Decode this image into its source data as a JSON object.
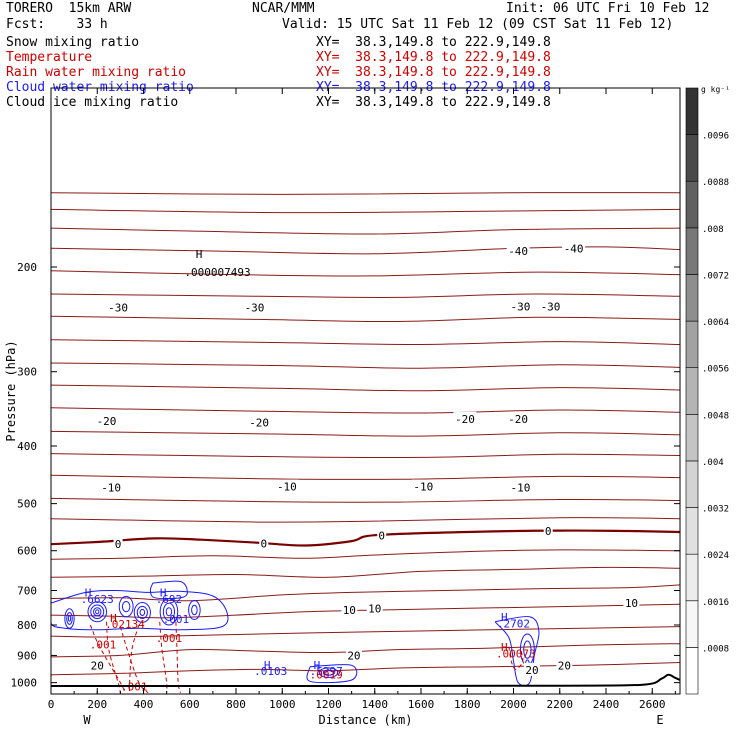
{
  "header": {
    "model": "TORERO  15km ARW",
    "org": "NCAR/MMM",
    "init": "Init: 06 UTC Fri 10 Feb 12",
    "fcst": "Fcst:    33 h",
    "valid": "Valid: 15 UTC Sat 11 Feb 12 (09 CST Sat 11 Feb 12)"
  },
  "fields": [
    {
      "label": "Snow mixing ratio",
      "xy": "XY=  38.3,149.8 to 222.9,149.8",
      "color": "#000000"
    },
    {
      "label": "Temperature",
      "xy": "XY=  38.3,149.8 to 222.9,149.8",
      "color": "#cc0000"
    },
    {
      "label": "Rain water mixing ratio",
      "xy": "XY=  38.3,149.8 to 222.9,149.8",
      "color": "#cc0000"
    },
    {
      "label": "Cloud water mixing ratio",
      "xy": "XY=  38.3,149.8 to 222.9,149.8",
      "color": "#1a1aff"
    },
    {
      "label": "Cloud ice mixing ratio",
      "xy": "XY=  38.3,149.8 to 222.9,149.8",
      "color": "#000000"
    }
  ],
  "chart_data": {
    "type": "cross-section contour",
    "xlabel": "Distance (km)",
    "ylabel": "Pressure (hPa)",
    "x_ticks": [
      0,
      200,
      400,
      600,
      800,
      1000,
      1200,
      1400,
      1600,
      1800,
      2000,
      2200,
      2400,
      2600
    ],
    "x_tick_labels": [
      "0",
      "200",
      "400",
      "600",
      "800",
      "1000",
      "1200",
      "1400",
      "1600",
      "1800",
      "2000",
      "2200",
      "2400",
      "2600"
    ],
    "xlim": [
      0,
      2720
    ],
    "y_ticks": [
      200,
      300,
      400,
      500,
      600,
      700,
      800,
      900,
      1000
    ],
    "y_tick_labels": [
      "200",
      "300",
      "400",
      "500",
      "600",
      "700",
      "800",
      "900",
      "1000"
    ],
    "ylim": [
      100,
      1045
    ],
    "y_scale": "log",
    "left_end_label": "W",
    "right_end_label": "E",
    "colorbar": {
      "unit": "g kg⁻¹",
      "levels": [
        ".0008",
        ".0016",
        ".0024",
        ".0032",
        ".004",
        ".0048",
        ".0056",
        ".0064",
        ".0072",
        ".008",
        ".0088",
        ".0096"
      ],
      "colors": [
        "#ffffff",
        "#f7f7f7",
        "#ececec",
        "#e0e0e0",
        "#d3d3d3",
        "#c4c4c4",
        "#b4b4b4",
        "#a2a2a2",
        "#8e8e8e",
        "#787878",
        "#606060",
        "#4a4a4a",
        "#333333"
      ]
    },
    "temperature_color": "#8b1a1a",
    "zero_isotherm_color": "#7a0000",
    "rain_color": "#d00000",
    "cloud_water_color": "#1a1aff",
    "isotherms": [
      {
        "points": [
          [
            0,
            150
          ],
          [
            1000,
            151
          ],
          [
            2000,
            150
          ],
          [
            2720,
            150
          ]
        ]
      },
      {
        "points": [
          [
            0,
            160
          ],
          [
            1000,
            162
          ],
          [
            2000,
            161
          ],
          [
            2720,
            160
          ]
        ]
      },
      {
        "points": [
          [
            0,
            172
          ],
          [
            600,
            174
          ],
          [
            1400,
            176
          ],
          [
            2000,
            173
          ],
          [
            2720,
            172
          ]
        ]
      },
      {
        "points": [
          [
            0,
            186
          ],
          [
            700,
            188
          ],
          [
            1400,
            190
          ],
          [
            2000,
            186
          ],
          [
            2400,
            185
          ],
          [
            2720,
            187
          ]
        ]
      },
      {
        "points": [
          [
            0,
            203
          ],
          [
            800,
            206
          ],
          [
            1400,
            207
          ],
          [
            2100,
            204
          ],
          [
            2720,
            206
          ]
        ]
      },
      {
        "points": [
          [
            0,
            222
          ],
          [
            900,
            224
          ],
          [
            1500,
            225
          ],
          [
            2100,
            222
          ],
          [
            2720,
            224
          ]
        ]
      },
      {
        "points": [
          [
            0,
            242
          ],
          [
            900,
            245
          ],
          [
            1500,
            247
          ],
          [
            2100,
            243
          ],
          [
            2720,
            245
          ]
        ]
      },
      {
        "points": [
          [
            0,
            265
          ],
          [
            1000,
            268
          ],
          [
            1600,
            270
          ],
          [
            2200,
            267
          ],
          [
            2720,
            270
          ]
        ]
      },
      {
        "points": [
          [
            0,
            290
          ],
          [
            1000,
            293
          ],
          [
            1600,
            296
          ],
          [
            2200,
            292
          ],
          [
            2720,
            295
          ]
        ]
      },
      {
        "points": [
          [
            0,
            316
          ],
          [
            1000,
            320
          ],
          [
            1600,
            323
          ],
          [
            2200,
            319
          ],
          [
            2720,
            322
          ]
        ]
      },
      {
        "points": [
          [
            0,
            345
          ],
          [
            1000,
            350
          ],
          [
            1600,
            352
          ],
          [
            2200,
            348
          ],
          [
            2720,
            351
          ]
        ]
      },
      {
        "points": [
          [
            0,
            378
          ],
          [
            1000,
            382
          ],
          [
            1600,
            385
          ],
          [
            2200,
            380
          ],
          [
            2720,
            383
          ]
        ]
      },
      {
        "points": [
          [
            0,
            412
          ],
          [
            1000,
            417
          ],
          [
            1600,
            418
          ],
          [
            2200,
            413
          ],
          [
            2720,
            415
          ]
        ]
      },
      {
        "points": [
          [
            0,
            448
          ],
          [
            900,
            454
          ],
          [
            1500,
            455
          ],
          [
            2200,
            450
          ],
          [
            2720,
            452
          ]
        ]
      },
      {
        "points": [
          [
            0,
            490
          ],
          [
            900,
            496
          ],
          [
            1500,
            497
          ],
          [
            2200,
            492
          ],
          [
            2720,
            494
          ]
        ]
      },
      {
        "points": [
          [
            0,
            530
          ],
          [
            900,
            537
          ],
          [
            1400,
            535
          ],
          [
            2200,
            528
          ],
          [
            2720,
            530
          ]
        ]
      },
      {
        "points": [
          [
            0,
            620
          ],
          [
            300,
            618
          ],
          [
            700,
            612
          ],
          [
            1100,
            618
          ],
          [
            1400,
            610
          ],
          [
            1800,
            602
          ],
          [
            2200,
            598
          ],
          [
            2720,
            600
          ]
        ]
      },
      {
        "points": [
          [
            0,
            665
          ],
          [
            400,
            662
          ],
          [
            800,
            658
          ],
          [
            1200,
            665
          ],
          [
            1600,
            650
          ],
          [
            2000,
            645
          ],
          [
            2400,
            640
          ],
          [
            2720,
            642
          ]
        ]
      },
      {
        "points": [
          [
            0,
            722
          ],
          [
            300,
            720
          ],
          [
            600,
            728
          ],
          [
            1000,
            712
          ],
          [
            1300,
            705
          ],
          [
            1700,
            700
          ],
          [
            2100,
            695
          ],
          [
            2500,
            692
          ],
          [
            2720,
            685
          ]
        ]
      },
      {
        "points": [
          [
            0,
            770
          ],
          [
            250,
            773
          ],
          [
            500,
            778
          ],
          [
            800,
            770
          ],
          [
            1100,
            760
          ],
          [
            1400,
            755
          ],
          [
            1800,
            750
          ],
          [
            2200,
            745
          ],
          [
            2720,
            738
          ]
        ]
      },
      {
        "points": [
          [
            0,
            835
          ],
          [
            200,
            838
          ],
          [
            500,
            835
          ],
          [
            800,
            830
          ],
          [
            1100,
            825
          ],
          [
            1500,
            820
          ],
          [
            1900,
            815
          ],
          [
            2300,
            810
          ],
          [
            2720,
            805
          ]
        ]
      },
      {
        "points": [
          [
            0,
            905
          ],
          [
            300,
            900
          ],
          [
            600,
            880
          ],
          [
            900,
            885
          ],
          [
            1200,
            890
          ],
          [
            1500,
            880
          ],
          [
            1900,
            875
          ],
          [
            2300,
            865
          ],
          [
            2720,
            860
          ]
        ]
      },
      {
        "points": [
          [
            0,
            970
          ],
          [
            300,
            965
          ],
          [
            600,
            955
          ],
          [
            900,
            950
          ],
          [
            1200,
            955
          ],
          [
            1500,
            945
          ],
          [
            1900,
            940
          ],
          [
            2300,
            935
          ],
          [
            2720,
            925
          ]
        ]
      }
    ],
    "zero_isotherm": {
      "points": [
        [
          0,
          585
        ],
        [
          200,
          580
        ],
        [
          450,
          572
        ],
        [
          650,
          575
        ],
        [
          900,
          582
        ],
        [
          1100,
          588
        ],
        [
          1300,
          578
        ],
        [
          1400,
          565
        ],
        [
          1800,
          558
        ],
        [
          2200,
          555
        ],
        [
          2500,
          556
        ],
        [
          2720,
          558
        ]
      ]
    },
    "isotherm_labels": [
      {
        "text": "-40",
        "x": 2020,
        "p": 188
      },
      {
        "text": "-40",
        "x": 2260,
        "p": 186
      },
      {
        "text": "-30",
        "x": 290,
        "p": 234
      },
      {
        "text": "-30",
        "x": 880,
        "p": 234
      },
      {
        "text": "-30",
        "x": 2030,
        "p": 233
      },
      {
        "text": "-30",
        "x": 2160,
        "p": 233
      },
      {
        "text": "-20",
        "x": 240,
        "p": 363
      },
      {
        "text": "-20",
        "x": 900,
        "p": 365
      },
      {
        "text": "-20",
        "x": 1790,
        "p": 360
      },
      {
        "text": "-20",
        "x": 2020,
        "p": 360
      },
      {
        "text": "-10",
        "x": 260,
        "p": 470
      },
      {
        "text": "-10",
        "x": 1020,
        "p": 468
      },
      {
        "text": "-10",
        "x": 1610,
        "p": 468
      },
      {
        "text": "-10",
        "x": 2030,
        "p": 470
      },
      {
        "text": "0",
        "x": 290,
        "p": 585
      },
      {
        "text": "0",
        "x": 920,
        "p": 583
      },
      {
        "text": "0",
        "x": 1430,
        "p": 566
      },
      {
        "text": "0",
        "x": 2150,
        "p": 556
      },
      {
        "text": "10",
        "x": 1290,
        "p": 755
      },
      {
        "text": "10",
        "x": 1400,
        "p": 750
      },
      {
        "text": "10",
        "x": 2510,
        "p": 735
      },
      {
        "text": "20",
        "x": 200,
        "p": 935
      },
      {
        "text": "20",
        "x": 1310,
        "p": 900
      },
      {
        "text": "20",
        "x": 2220,
        "p": 935
      },
      {
        "text": "20",
        "x": 2080,
        "p": 952
      }
    ],
    "max_labels": [
      {
        "text": "H",
        "x": 640,
        "p": 193,
        "color": "#000000"
      },
      {
        "text": ".000007493",
        "x": 720,
        "p": 207,
        "color": "#000000"
      },
      {
        "text": "H",
        "x": 160,
        "p": 716,
        "color": "#1a1aff"
      },
      {
        "text": ".6623",
        "x": 200,
        "p": 735,
        "color": "#1a1aff"
      },
      {
        "text": "H",
        "x": 485,
        "p": 717,
        "color": "#1a1aff"
      },
      {
        "text": ".692",
        "x": 510,
        "p": 735,
        "color": "#1a1aff"
      },
      {
        "text": "H",
        "x": 270,
        "p": 791,
        "color": "#d00000"
      },
      {
        "text": ".02134",
        "x": 320,
        "p": 810,
        "color": "#d00000"
      },
      {
        "text": ".001",
        "x": 540,
        "p": 794,
        "color": "#1a1aff"
      },
      {
        "text": ".001",
        "x": 225,
        "p": 877,
        "color": "#d00000"
      },
      {
        "text": ".001",
        "x": 510,
        "p": 855,
        "color": "#d00000"
      },
      {
        "text": "H",
        "x": 1960,
        "p": 788,
        "color": "#1a1aff"
      },
      {
        "text": ".2702",
        "x": 2000,
        "p": 808,
        "color": "#1a1aff"
      },
      {
        "text": "H",
        "x": 1960,
        "p": 885,
        "color": "#d00000"
      },
      {
        "text": ".00073",
        "x": 2010,
        "p": 908,
        "color": "#d00000"
      },
      {
        "text": "H",
        "x": 935,
        "p": 948,
        "color": "#1a1aff"
      },
      {
        "text": ".0103",
        "x": 950,
        "p": 970,
        "color": "#1a1aff"
      },
      {
        "text": "H",
        "x": 1150,
        "p": 948,
        "color": "#1a1aff"
      },
      {
        "text": ".5297",
        "x": 1190,
        "p": 970,
        "color": "#1a1aff"
      },
      {
        "text": ".0019",
        "x": 1190,
        "p": 985,
        "color": "#d00000"
      },
      {
        "text": ".001",
        "x": 360,
        "p": 1030,
        "color": "#d00000"
      }
    ]
  }
}
